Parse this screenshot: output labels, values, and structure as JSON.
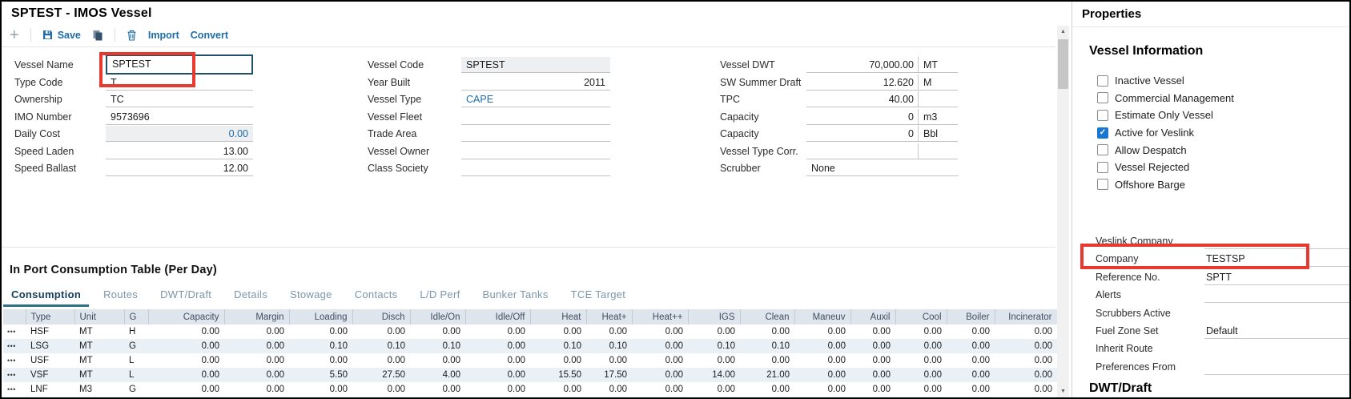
{
  "title": "SPTEST - IMOS Vessel",
  "toolbar": {
    "plus": "+",
    "save": "Save",
    "import": "Import",
    "convert": "Convert"
  },
  "icons": {
    "scroll_up": "▲",
    "scroll_down": "▼",
    "row_menu": "•••",
    "check": "✓"
  },
  "colors": {
    "link_blue": "#1d6ca8",
    "tab_active": "#17405e",
    "tab_underline": "#2f7187",
    "annotation_red": "#e8392f",
    "checkbox_checked": "#1877d2",
    "focused_border": "#20506a"
  },
  "form": {
    "columns": [
      {
        "fields": [
          {
            "label": "Vessel Name",
            "value": "SPTEST",
            "focused": true,
            "annotated": true
          },
          {
            "label": "Type Code",
            "value": "T"
          },
          {
            "label": "Ownership",
            "value": "TC"
          },
          {
            "label": "IMO Number",
            "value": "9573696"
          },
          {
            "label": "Daily Cost",
            "value": "0.00",
            "align": "right",
            "blue": true,
            "readonly": true
          },
          {
            "label": "Speed Laden",
            "value": "13.00",
            "align": "right"
          },
          {
            "label": "Speed Ballast",
            "value": "12.00",
            "align": "right"
          }
        ]
      },
      {
        "fields": [
          {
            "label": "Vessel Code",
            "value": "SPTEST",
            "readonly": true
          },
          {
            "label": "Year Built",
            "value": "2011",
            "align": "right"
          },
          {
            "label": "Vessel Type",
            "value": "CAPE",
            "blue": true
          },
          {
            "label": "Vessel Fleet",
            "value": ""
          },
          {
            "label": "Trade Area",
            "value": ""
          },
          {
            "label": "Vessel Owner",
            "value": ""
          },
          {
            "label": "Class Society",
            "value": ""
          }
        ]
      },
      {
        "fields": [
          {
            "label": "Vessel DWT",
            "value": "70,000.00",
            "align": "right",
            "unit": "MT",
            "unit_cell": true
          },
          {
            "label": "SW Summer Draft",
            "value": "12.620",
            "align": "right",
            "unit": "M",
            "unit_cell": true
          },
          {
            "label": "TPC",
            "value": "40.00",
            "align": "right",
            "unit": "",
            "unit_cell": true
          },
          {
            "label": "Capacity",
            "value": "0",
            "align": "right",
            "unit": "m3",
            "unit_cell": true
          },
          {
            "label": "Capacity",
            "value": "0",
            "align": "right",
            "unit": "Bbl",
            "unit_cell": true
          },
          {
            "label": "Vessel Type Corr.",
            "value": "",
            "unit": "",
            "unit_cell": true
          },
          {
            "label": "Scrubber",
            "value": "None",
            "full": true
          }
        ]
      }
    ]
  },
  "section": {
    "title": "In Port Consumption Table (Per Day)",
    "tabs": [
      {
        "label": "Consumption",
        "active": true
      },
      {
        "label": "Routes",
        "active": false
      },
      {
        "label": "DWT/Draft",
        "active": false
      },
      {
        "label": "Details",
        "active": false
      },
      {
        "label": "Stowage",
        "active": false
      },
      {
        "label": "Contacts",
        "active": false
      },
      {
        "label": "L/D Perf",
        "active": false
      },
      {
        "label": "Bunker Tanks",
        "active": false
      },
      {
        "label": "TCE Target",
        "active": false
      }
    ],
    "table": {
      "columns": [
        "",
        "Type",
        "Unit",
        "G",
        "Capacity",
        "Margin",
        "Loading",
        "Disch",
        "Idle/On",
        "Idle/Off",
        "Heat",
        "Heat+",
        "Heat++",
        "IGS",
        "Clean",
        "Maneuv",
        "Auxil",
        "Cool",
        "Boiler",
        "Incinerator"
      ],
      "rows": [
        {
          "type": "HSF",
          "unit": "MT",
          "g": "H",
          "values": [
            "0.00",
            "0.00",
            "0.00",
            "0.00",
            "0.00",
            "0.00",
            "0.00",
            "0.00",
            "0.00",
            "0.00",
            "0.00",
            "0.00",
            "0.00",
            "0.00",
            "0.00",
            "0.00"
          ]
        },
        {
          "type": "LSG",
          "unit": "MT",
          "g": "G",
          "values": [
            "0.00",
            "0.00",
            "0.10",
            "0.10",
            "0.10",
            "0.00",
            "0.10",
            "0.10",
            "0.00",
            "0.10",
            "0.10",
            "0.00",
            "0.00",
            "0.00",
            "0.00",
            "0.00"
          ]
        },
        {
          "type": "USF",
          "unit": "MT",
          "g": "L",
          "values": [
            "0.00",
            "0.00",
            "0.00",
            "0.00",
            "0.00",
            "0.00",
            "0.00",
            "0.00",
            "0.00",
            "0.00",
            "0.00",
            "0.00",
            "0.00",
            "0.00",
            "0.00",
            "0.00"
          ]
        },
        {
          "type": "VSF",
          "unit": "MT",
          "g": "L",
          "values": [
            "0.00",
            "0.00",
            "5.50",
            "27.50",
            "4.00",
            "0.00",
            "15.50",
            "17.50",
            "0.00",
            "14.00",
            "21.00",
            "0.00",
            "0.00",
            "0.00",
            "0.00",
            "0.00"
          ]
        },
        {
          "type": "LNF",
          "unit": "M3",
          "g": "G",
          "values": [
            "0.00",
            "0.00",
            "0.00",
            "0.00",
            "0.00",
            "0.00",
            "0.00",
            "0.00",
            "0.00",
            "0.00",
            "0.00",
            "0.00",
            "0.00",
            "0.00",
            "0.00",
            "0.00"
          ]
        }
      ]
    }
  },
  "properties": {
    "title": "Properties",
    "section_title": "Vessel Information",
    "checkboxes": [
      {
        "label": "Inactive Vessel",
        "checked": false
      },
      {
        "label": "Commercial Management",
        "checked": false
      },
      {
        "label": "Estimate Only Vessel",
        "checked": false
      },
      {
        "label": "Active for Veslink",
        "checked": true
      },
      {
        "label": "Allow Despatch",
        "checked": false
      },
      {
        "label": "Vessel Rejected",
        "checked": false
      },
      {
        "label": "Offshore Barge",
        "checked": false
      }
    ],
    "fields": [
      {
        "label": "Veslink Company",
        "value": "",
        "underline": true
      },
      {
        "label": "Company",
        "value": "TESTSP",
        "underline": true,
        "annotated": true
      },
      {
        "label": "Reference No.",
        "value": "SPTT",
        "underline": true
      },
      {
        "label": "Alerts",
        "value": "",
        "underline": true
      },
      {
        "label": "Scrubbers Active",
        "value": "",
        "underline": false
      },
      {
        "label": "Fuel Zone Set",
        "value": "Default",
        "underline": true
      },
      {
        "label": "Inherit Route",
        "value": "",
        "underline": false
      },
      {
        "label": "Preferences From",
        "value": "",
        "underline": true
      }
    ],
    "next_section": "DWT/Draft"
  }
}
